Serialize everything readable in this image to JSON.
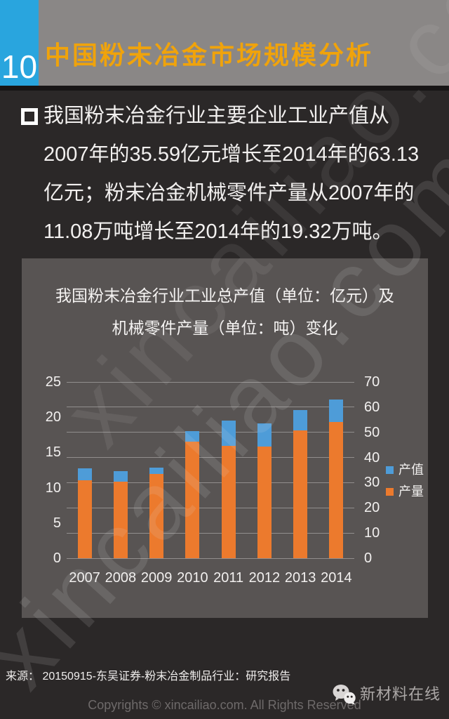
{
  "page": {
    "number": "10",
    "title": "中国粉末冶金市场规模分析"
  },
  "body_text": "我国粉末冶金行业主要企业工业产值从2007年的35.59亿元增长至2014年的63.13亿元；粉末冶金机械零件产量从2007年的11.08万吨增长至2014年的19.32万吨。",
  "chart_data": {
    "type": "bar",
    "title_line1": "我国粉末冶金行业工业总产值（单位：亿元）及",
    "title_line2": "机械零件产量（单位：吨）变化",
    "categories": [
      "2007",
      "2008",
      "2009",
      "2010",
      "2011",
      "2012",
      "2013",
      "2014"
    ],
    "series": [
      {
        "name": "产值",
        "axis": "right",
        "color": "#4E9CD8",
        "values": [
          35.59,
          34.5,
          35.9,
          50.5,
          54.6,
          53.5,
          58.8,
          63.13
        ]
      },
      {
        "name": "产量",
        "axis": "left",
        "color": "#EC7A2D",
        "values": [
          11.08,
          10.85,
          12.0,
          16.5,
          15.9,
          15.8,
          18.1,
          19.32
        ]
      }
    ],
    "left_axis": {
      "min": 0,
      "max": 25,
      "ticks": [
        0,
        5,
        10,
        15,
        20,
        25
      ]
    },
    "right_axis": {
      "min": 0,
      "max": 70,
      "ticks": [
        0,
        10,
        20,
        30,
        40,
        50,
        60,
        70
      ]
    },
    "grid": true,
    "legend_position": "right",
    "bar_style": "overlapped-dual-axis"
  },
  "source": "来源：  20150915-东吴证券-粉末冶金制品行业：研究报告",
  "footer": {
    "copyright": "Copyrights © xincailiao.com. All Rights Reserved",
    "brand": "新材料在线"
  },
  "watermark": {
    "text": "xincailiao.com"
  },
  "colors": {
    "background": "#2B2828",
    "header_band": "#8A8786",
    "page_number_box": "#29A5DE",
    "title_accent": "#F0A30B",
    "panel": "#585453",
    "bar_value": "#4E9CD8",
    "bar_output": "#EC7A2D"
  }
}
